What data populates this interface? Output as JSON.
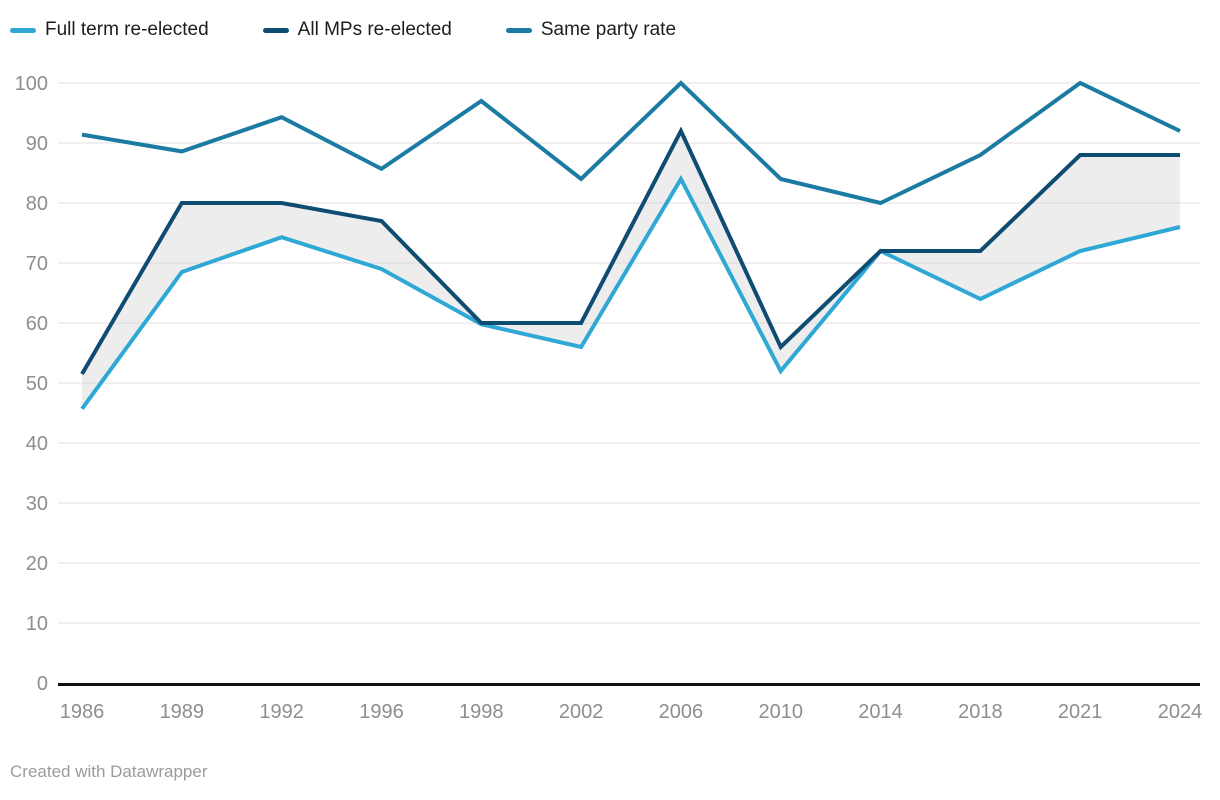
{
  "legend": {
    "items": [
      {
        "label": "Full term re-elected",
        "color": "#2fa8d5"
      },
      {
        "label": "All MPs re-elected",
        "color": "#0f4c72"
      },
      {
        "label": "Same party rate",
        "color": "#1b7ba3"
      }
    ]
  },
  "footer": {
    "credit": "Created with Datawrapper"
  },
  "colors": {
    "background": "#ffffff",
    "grid": "#e8e8e8",
    "axis": "#111111",
    "tick_label": "#8e8e8e",
    "legend_text": "#1d1d1d",
    "footer_text": "#9b9b9b",
    "band_fill": "#cccccc"
  },
  "chart_data": {
    "type": "line",
    "title": "",
    "xlabel": "",
    "ylabel": "",
    "x": [
      "1986",
      "1989",
      "1992",
      "1996",
      "1998",
      "2002",
      "2006",
      "2010",
      "2014",
      "2018",
      "2021",
      "2024"
    ],
    "series": [
      {
        "name": "Full term re-elected",
        "color": "#2fa8d5",
        "values": [
          45.7,
          68.5,
          74.3,
          69,
          59.8,
          56,
          84,
          52,
          72,
          64,
          72,
          76
        ]
      },
      {
        "name": "All MPs re-elected",
        "color": "#0f4c72",
        "values": [
          51.5,
          80,
          80,
          77,
          60,
          60,
          92,
          56,
          72,
          72,
          88,
          88
        ]
      },
      {
        "name": "Same party rate",
        "color": "#1b7ba3",
        "values": [
          91.4,
          88.6,
          94.3,
          85.7,
          97,
          84,
          100,
          84,
          80,
          88,
          100,
          92
        ]
      }
    ],
    "band": {
      "between": [
        "All MPs re-elected",
        "Full term re-elected"
      ],
      "fill": "#cccccc",
      "opacity": 0.35
    },
    "ylim": [
      0,
      100
    ],
    "yticks": [
      0,
      10,
      20,
      30,
      40,
      50,
      60,
      70,
      80,
      90,
      100
    ],
    "grid": true,
    "legend_position": "top-left"
  }
}
